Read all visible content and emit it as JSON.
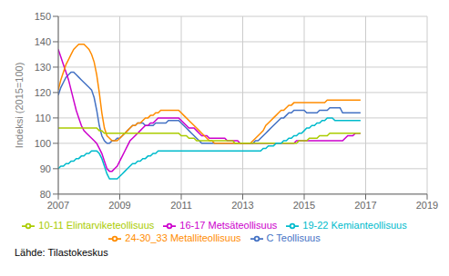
{
  "chart_data": {
    "type": "line",
    "y_label": "Indeksi (2015=100)",
    "annotations": [
      "Lähde: Tilastokeskus"
    ],
    "xlim": [
      2007.0,
      2019.0
    ],
    "xticks": [
      2007,
      2009,
      2011,
      2013,
      2015,
      2017,
      2019
    ],
    "ylim": [
      80,
      150
    ],
    "yticks": [
      80,
      90,
      100,
      110,
      120,
      130,
      140,
      150
    ],
    "grid": true,
    "legend": "bottom",
    "x": [
      2007.0,
      2007.0833333333333,
      2007.1666666666667,
      2007.25,
      2007.3333333333333,
      2007.4166666666667,
      2007.5,
      2007.5833333333333,
      2007.6666666666667,
      2007.75,
      2007.8333333333333,
      2007.9166666666667,
      2008.0,
      2008.0833333333333,
      2008.1666666666667,
      2008.25,
      2008.3333333333333,
      2008.4166666666667,
      2008.5,
      2008.5833333333333,
      2008.6666666666667,
      2008.75,
      2008.8333333333333,
      2008.9166666666667,
      2009.0,
      2009.0833333333333,
      2009.1666666666667,
      2009.25,
      2009.3333333333333,
      2009.4166666666667,
      2009.5,
      2009.5833333333333,
      2009.6666666666667,
      2009.75,
      2009.8333333333333,
      2009.9166666666667,
      2010.0,
      2010.0833333333333,
      2010.1666666666667,
      2010.25,
      2010.3333333333333,
      2010.4166666666667,
      2010.5,
      2010.5833333333333,
      2010.6666666666667,
      2010.75,
      2010.8333333333333,
      2010.9166666666667,
      2011.0,
      2011.0833333333333,
      2011.1666666666667,
      2011.25,
      2011.3333333333333,
      2011.4166666666667,
      2011.5,
      2011.5833333333333,
      2011.6666666666667,
      2011.75,
      2011.8333333333333,
      2011.9166666666667,
      2012.0,
      2012.0833333333333,
      2012.1666666666667,
      2012.25,
      2012.3333333333333,
      2012.4166666666667,
      2012.5,
      2012.5833333333333,
      2012.6666666666667,
      2012.75,
      2012.8333333333333,
      2012.9166666666667,
      2013.0,
      2013.0833333333333,
      2013.1666666666667,
      2013.25,
      2013.3333333333333,
      2013.4166666666667,
      2013.5,
      2013.5833333333333,
      2013.6666666666667,
      2013.75,
      2013.8333333333333,
      2013.9166666666667,
      2014.0,
      2014.0833333333333,
      2014.1666666666667,
      2014.25,
      2014.3333333333333,
      2014.4166666666667,
      2014.5,
      2014.5833333333333,
      2014.6666666666667,
      2014.75,
      2014.8333333333333,
      2014.9166666666667,
      2015.0,
      2015.0833333333333,
      2015.1666666666667,
      2015.25,
      2015.3333333333333,
      2015.4166666666667,
      2015.5,
      2015.5833333333333,
      2015.6666666666667,
      2015.75,
      2015.8333333333333,
      2015.9166666666667,
      2016.0,
      2016.0833333333333,
      2016.1666666666667,
      2016.25,
      2016.3333333333333,
      2016.4166666666667,
      2016.5,
      2016.5833333333333,
      2016.6666666666667,
      2016.75,
      2016.8333333333333
    ],
    "series": [
      {
        "name": "C Teollisuus",
        "color": "#4472C4",
        "values": [
          119,
          122,
          124,
          126,
          127,
          128,
          128,
          127,
          126,
          125,
          124,
          123,
          122,
          121,
          118,
          113,
          107,
          103,
          101,
          100,
          100,
          101,
          101,
          102,
          102,
          103,
          104,
          105,
          106,
          107,
          107,
          108,
          108,
          108,
          107,
          107,
          107,
          107,
          108,
          108,
          108,
          108,
          108,
          109,
          109,
          109,
          109,
          109,
          108,
          107,
          106,
          105,
          104,
          103,
          102,
          101,
          100,
          100,
          100,
          100,
          100,
          100,
          100,
          100,
          100,
          100,
          100,
          100,
          100,
          100,
          100,
          100,
          100,
          100,
          100,
          100,
          100,
          101,
          101,
          102,
          103,
          104,
          105,
          106,
          107,
          108,
          109,
          110,
          110,
          111,
          112,
          112,
          113,
          113,
          113,
          113,
          113,
          112,
          112,
          112,
          112,
          112,
          113,
          113,
          113,
          113,
          114,
          114,
          114,
          114,
          114,
          112,
          112,
          112,
          112,
          112,
          112,
          112,
          112
        ]
      },
      {
        "name": "16-17 Metsäteollisuus",
        "color": "#CC00CC",
        "values": [
          137,
          134,
          131,
          128,
          125,
          121,
          117,
          113,
          110,
          107,
          105,
          104,
          103,
          102,
          101,
          100,
          98,
          96,
          93,
          90,
          89,
          89,
          90,
          91,
          93,
          95,
          97,
          99,
          101,
          102,
          103,
          104,
          105,
          106,
          107,
          107,
          108,
          108,
          109,
          110,
          110,
          110,
          110,
          110,
          110,
          110,
          110,
          110,
          109,
          108,
          107,
          106,
          106,
          106,
          105,
          104,
          103,
          103,
          103,
          102,
          102,
          102,
          102,
          102,
          102,
          102,
          101,
          101,
          101,
          101,
          101,
          100,
          100,
          100,
          100,
          100,
          100,
          100,
          100,
          100,
          100,
          100,
          100,
          100,
          100,
          100,
          100,
          100,
          100,
          100,
          100,
          100,
          100,
          101,
          101,
          101,
          101,
          101,
          101,
          101,
          101,
          101,
          101,
          101,
          101,
          101,
          101,
          101,
          101,
          101,
          101,
          101,
          102,
          103,
          103,
          103,
          104,
          104,
          104
        ]
      },
      {
        "name": "24-30_33 Metalliteollisuus",
        "color": "#FF8C00",
        "values": [
          121,
          125,
          128,
          131,
          133,
          135,
          137,
          138,
          139,
          139,
          139,
          138,
          137,
          135,
          132,
          127,
          120,
          112,
          106,
          103,
          102,
          101,
          101,
          101,
          102,
          103,
          104,
          105,
          106,
          107,
          107,
          108,
          108,
          109,
          110,
          110,
          111,
          111,
          112,
          112,
          113,
          113,
          113,
          113,
          113,
          113,
          113,
          113,
          112,
          111,
          110,
          109,
          108,
          107,
          106,
          105,
          104,
          103,
          102,
          101,
          101,
          100,
          100,
          100,
          100,
          100,
          100,
          100,
          100,
          100,
          100,
          100,
          100,
          100,
          100,
          100,
          101,
          102,
          103,
          104,
          105,
          107,
          108,
          109,
          110,
          111,
          112,
          113,
          113,
          114,
          115,
          115,
          116,
          116,
          116,
          116,
          116,
          116,
          116,
          116,
          116,
          116,
          116,
          116,
          116,
          117,
          117,
          117,
          117,
          117,
          117,
          117,
          117,
          117,
          117,
          117,
          117,
          117,
          117
        ]
      },
      {
        "name": "10-11 Elintarviketeollisuus",
        "color": "#AACC00",
        "values": [
          106,
          106,
          106,
          106,
          106,
          106,
          106,
          106,
          106,
          106,
          106,
          106,
          106,
          106,
          106,
          106,
          105,
          105,
          104,
          104,
          104,
          104,
          104,
          104,
          104,
          104,
          104,
          104,
          104,
          104,
          104,
          104,
          104,
          104,
          104,
          104,
          104,
          104,
          104,
          104,
          104,
          104,
          104,
          104,
          104,
          104,
          104,
          104,
          103,
          103,
          103,
          102,
          102,
          102,
          101,
          101,
          101,
          101,
          101,
          101,
          101,
          101,
          101,
          101,
          101,
          101,
          101,
          101,
          101,
          100,
          100,
          100,
          100,
          100,
          100,
          100,
          100,
          100,
          100,
          100,
          100,
          100,
          100,
          100,
          100,
          100,
          100,
          100,
          100,
          100,
          100,
          100,
          100,
          100,
          101,
          101,
          101,
          101,
          102,
          102,
          102,
          102,
          103,
          103,
          103,
          103,
          104,
          104,
          104,
          104,
          104,
          104,
          104,
          104,
          104,
          104,
          104,
          104,
          104
        ]
      },
      {
        "name": "19-22 Kemianteollisuus",
        "color": "#00BBCC",
        "values": [
          90,
          91,
          91,
          92,
          92,
          93,
          93,
          94,
          94,
          95,
          95,
          96,
          96,
          97,
          97,
          97,
          96,
          94,
          91,
          88,
          86,
          86,
          86,
          86,
          87,
          88,
          89,
          90,
          91,
          92,
          92,
          93,
          93,
          94,
          94,
          95,
          95,
          96,
          96,
          97,
          97,
          97,
          97,
          97,
          97,
          97,
          97,
          97,
          97,
          97,
          97,
          97,
          97,
          97,
          97,
          97,
          97,
          97,
          97,
          97,
          97,
          97,
          97,
          97,
          97,
          97,
          97,
          97,
          97,
          97,
          97,
          97,
          97,
          97,
          97,
          97,
          97,
          97,
          97,
          97,
          98,
          98,
          99,
          99,
          99,
          100,
          100,
          100,
          101,
          101,
          102,
          102,
          103,
          103,
          104,
          104,
          105,
          106,
          106,
          107,
          107,
          108,
          108,
          109,
          109,
          110,
          110,
          110,
          109,
          109,
          109,
          109,
          109,
          109,
          109,
          109,
          109,
          109,
          109
        ]
      }
    ]
  }
}
